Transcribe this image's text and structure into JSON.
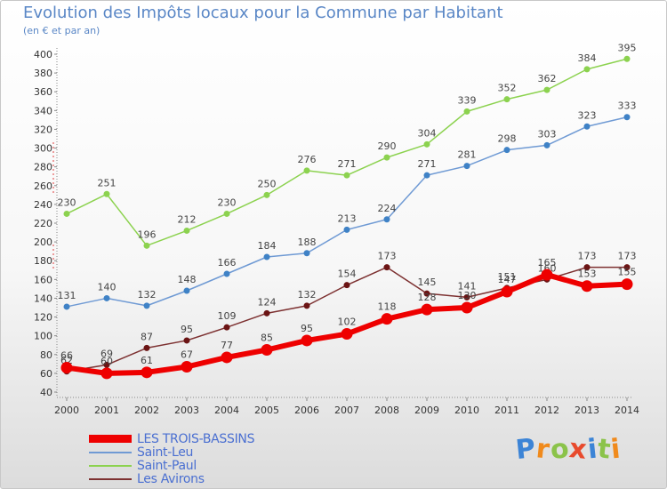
{
  "header": {
    "title": "Evolution des Impôts locaux pour la Commune par Habitant",
    "subtitle": "(en € et par an)"
  },
  "brand": {
    "logo_text": "Proxiti",
    "letters": [
      "P",
      "r",
      "o",
      "x",
      "i",
      "t",
      "i"
    ],
    "colors": [
      "#3c84d6",
      "#f08a1c",
      "#8bc34a",
      "#e84a2c",
      "#3c84d6",
      "#8bc34a",
      "#f08a1c"
    ]
  },
  "chart_data": {
    "type": "line",
    "title": "Evolution des Impôts locaux pour la Commune par Habitant",
    "subtitle": "(en € et par an)",
    "xlabel": "",
    "ylabel": "",
    "x": [
      "2000",
      "2001",
      "2002",
      "2003",
      "2004",
      "2005",
      "2006",
      "2007",
      "2008",
      "2009",
      "2010",
      "2011",
      "2012",
      "2013",
      "2014"
    ],
    "ylim": [
      40,
      400
    ],
    "yticks": [
      40,
      60,
      80,
      100,
      120,
      140,
      160,
      180,
      200,
      220,
      240,
      260,
      280,
      300,
      320,
      340,
      360,
      380,
      400
    ],
    "grid": false,
    "legend_position": "bottom-left",
    "series": [
      {
        "name": "Saint-Paul",
        "color": "#8cd24f",
        "marker": "#8cd24f",
        "width": 1.5,
        "radius": 3.5,
        "values": [
          230,
          251,
          196,
          212,
          230,
          250,
          276,
          271,
          290,
          304,
          339,
          352,
          362,
          384,
          395
        ],
        "labels": [
          "230",
          "251",
          "196",
          "212",
          "230",
          "250",
          "276",
          "271",
          "290",
          "304",
          "339",
          "352",
          "362",
          "384",
          "395"
        ]
      },
      {
        "name": "Saint-Leu",
        "color": "#6f9ad4",
        "marker": "#3f82c6",
        "width": 1.5,
        "radius": 3.5,
        "values": [
          131,
          140,
          132,
          148,
          166,
          184,
          188,
          213,
          224,
          271,
          281,
          298,
          303,
          323,
          333
        ],
        "labels": [
          "131",
          "140",
          "132",
          "148",
          "166",
          "184",
          "188",
          "213",
          "224",
          "271",
          "281",
          "298",
          "303",
          "323",
          "333"
        ]
      },
      {
        "name": "Les Avirons",
        "color": "#7d3131",
        "marker": "#6b1414",
        "width": 1.5,
        "radius": 3.5,
        "values": [
          62,
          69,
          87,
          95,
          109,
          124,
          132,
          154,
          173,
          145,
          141,
          151,
          160,
          173,
          173
        ],
        "labels": [
          "62",
          "69",
          "87",
          "95",
          "109",
          "124",
          "132",
          "154",
          "173",
          "145",
          "141",
          "151",
          "160",
          "173",
          "173"
        ]
      },
      {
        "name": "LES TROIS-BASSINS",
        "color": "#ee0000",
        "marker": "#ee0000",
        "width": 6,
        "radius": 6.5,
        "values": [
          66,
          60,
          61,
          67,
          77,
          85,
          95,
          102,
          118,
          128,
          130,
          147,
          165,
          153,
          155
        ],
        "labels": [
          "66",
          "60",
          "61",
          "67",
          "77",
          "85",
          "95",
          "102",
          "118",
          "128",
          "130",
          "147",
          "165",
          "153",
          "155"
        ]
      }
    ],
    "legend_order": [
      "LES TROIS-BASSINS",
      "Saint-Leu",
      "Saint-Paul",
      "Les Avirons"
    ]
  }
}
